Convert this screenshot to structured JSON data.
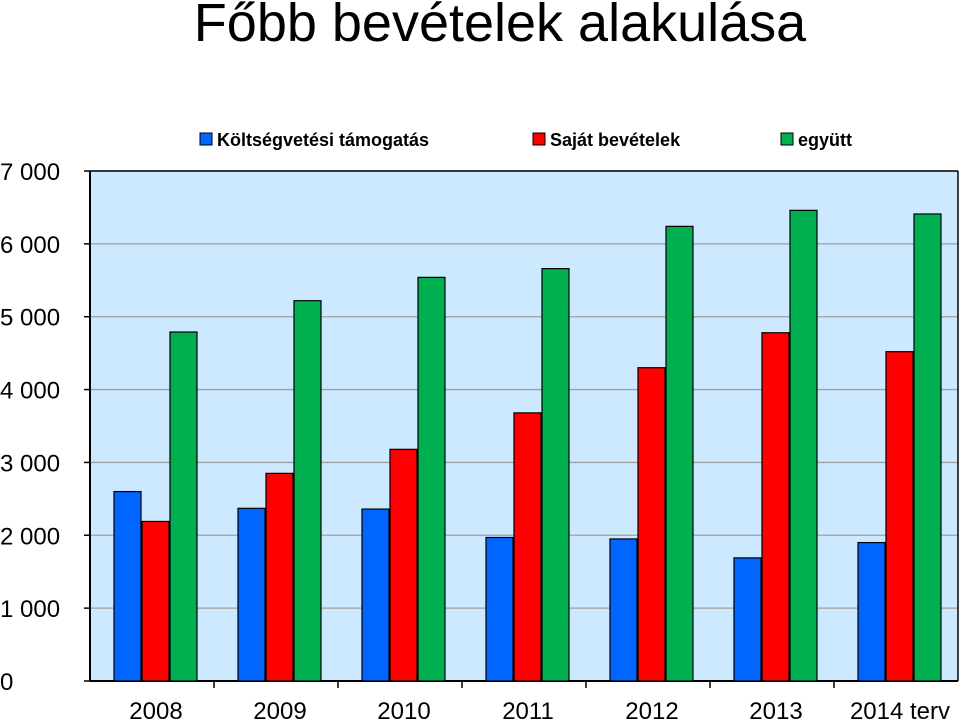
{
  "chart_data": {
    "type": "bar",
    "title": "Főbb bevételek alakulása",
    "categories": [
      "2008",
      "2009",
      "2010",
      "2011",
      "2012",
      "2013",
      "2014 terv"
    ],
    "series": [
      {
        "name": "Költségvetési támogatás",
        "color": "#0066FF",
        "values": [
          2600,
          2370,
          2360,
          1970,
          1950,
          1690,
          1900
        ]
      },
      {
        "name": "Saját bevételek",
        "color": "#FF0000",
        "values": [
          2190,
          2850,
          3180,
          3680,
          4300,
          4780,
          4520
        ]
      },
      {
        "name": "együtt",
        "color": "#00B050",
        "values": [
          4790,
          5220,
          5540,
          5660,
          6240,
          6460,
          6410
        ]
      }
    ],
    "yticks": [
      "0",
      "1 000",
      "2 000",
      "3 000",
      "4 000",
      "5 000",
      "6 000",
      "7 000"
    ],
    "ylim": [
      0,
      7000
    ],
    "grid": true,
    "legend": "top",
    "plot_background": "#CCE9FF"
  }
}
